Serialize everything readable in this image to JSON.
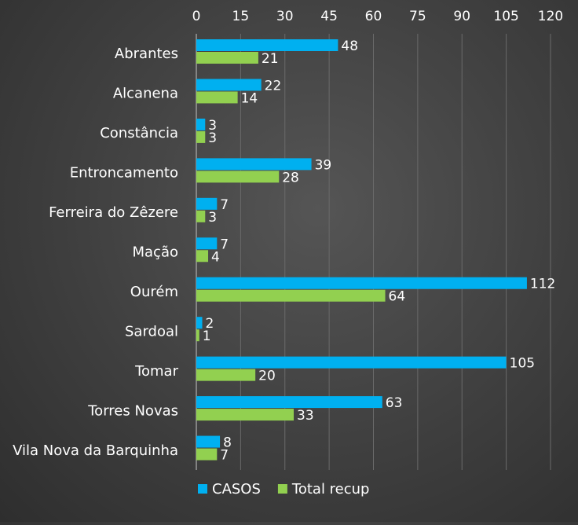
{
  "chart_data": {
    "type": "bar",
    "orientation": "horizontal",
    "categories": [
      "Abrantes",
      "Alcanena",
      "Constância",
      "Entroncamento",
      "Ferreira do Zêzere",
      "Mação",
      "Ourém",
      "Sardoal",
      "Tomar",
      "Torres Novas",
      "Vila Nova da Barquinha"
    ],
    "series": [
      {
        "name": "CASOS",
        "color": "#00b0f0",
        "values": [
          48,
          22,
          3,
          39,
          7,
          7,
          112,
          2,
          105,
          63,
          8
        ]
      },
      {
        "name": "Total recup",
        "color": "#92d050",
        "values": [
          21,
          14,
          3,
          28,
          3,
          4,
          64,
          1,
          20,
          33,
          7
        ]
      }
    ],
    "xlim": [
      0,
      120
    ],
    "xticks": [
      0,
      15,
      30,
      45,
      60,
      75,
      90,
      105,
      120
    ],
    "axis_position": "top",
    "grid": true,
    "legend_position": "bottom"
  }
}
